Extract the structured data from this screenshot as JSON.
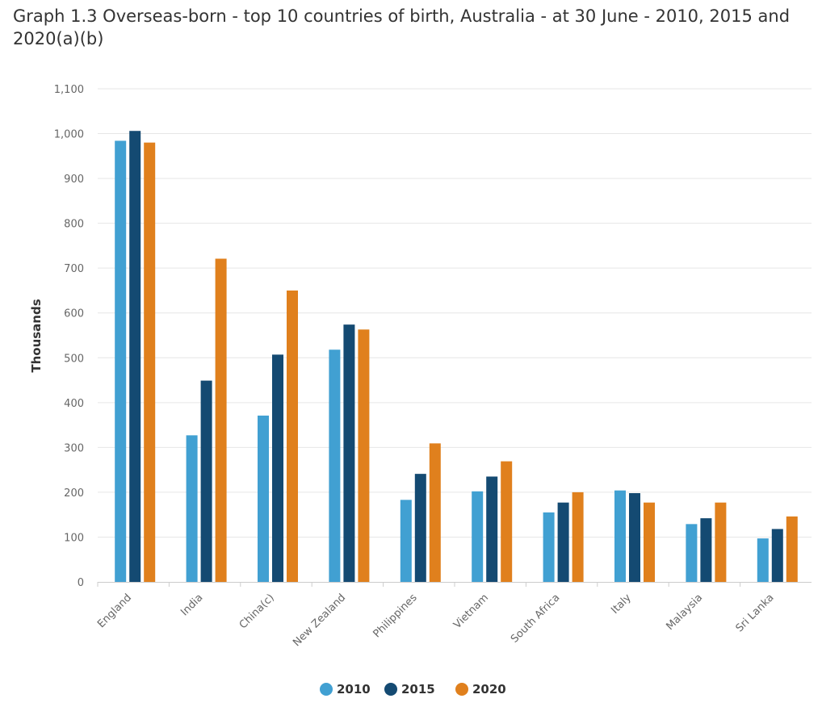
{
  "chart_data": {
    "type": "bar",
    "title": "Graph 1.3 Overseas-born - top 10 countries of birth, Australia - at 30 June - 2010, 2015 and 2020(a)(b)",
    "ylabel": "Thousands",
    "xlabel": "",
    "ylim": [
      0,
      1100
    ],
    "yticks": [
      0,
      100,
      200,
      300,
      400,
      500,
      600,
      700,
      800,
      900,
      1000,
      1100
    ],
    "ytick_labels": [
      "0",
      "100",
      "200",
      "300",
      "400",
      "500",
      "600",
      "700",
      "800",
      "900",
      "1,000",
      "1,100"
    ],
    "grid": true,
    "legend_position": "bottom-center",
    "categories": [
      "England",
      "India",
      "China(c)",
      "New Zealand",
      "Philippines",
      "Vietnam",
      "South Africa",
      "Italy",
      "Malaysia",
      "Sri Lanka"
    ],
    "series": [
      {
        "name": "2010",
        "color": "#41a0d2",
        "values": [
          984,
          327,
          371,
          518,
          183,
          202,
          155,
          204,
          129,
          97
        ]
      },
      {
        "name": "2015",
        "color": "#144a72",
        "values": [
          1006,
          449,
          507,
          574,
          241,
          235,
          177,
          198,
          142,
          118
        ]
      },
      {
        "name": "2020",
        "color": "#e0801d",
        "values": [
          980,
          721,
          650,
          563,
          309,
          269,
          200,
          177,
          177,
          146
        ]
      }
    ]
  }
}
